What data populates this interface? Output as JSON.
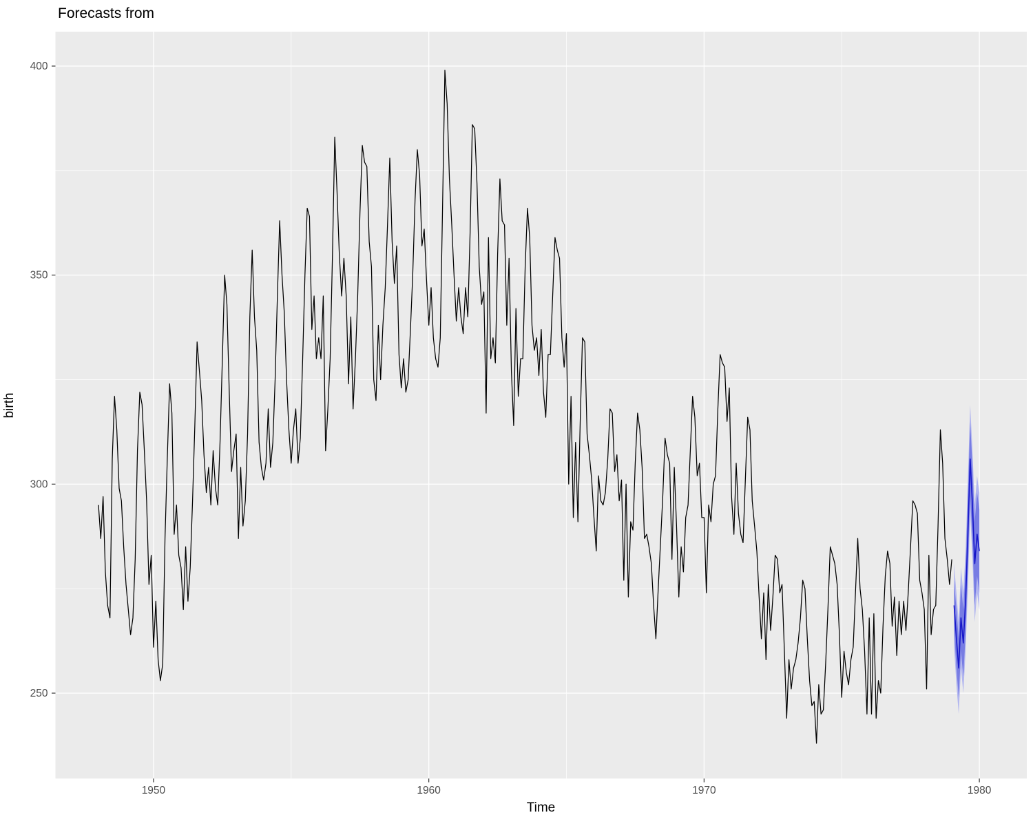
{
  "title": "Forecasts from",
  "axes": {
    "x_label": "Time",
    "y_label": "birth",
    "x_ticks": [
      1950,
      1960,
      1970,
      1980
    ],
    "x_minor": [
      1955,
      1965,
      1975
    ],
    "y_ticks": [
      250,
      300,
      350,
      400
    ],
    "y_minor": [
      275,
      325,
      375
    ]
  },
  "colors": {
    "panel_bg": "#EBEBEB",
    "grid": "#FFFFFF",
    "series_line": "#000000",
    "forecast_line": "#1717C9",
    "band80": "#777CE3",
    "band95": "#B3B7EF",
    "tick_mark": "#333333",
    "tick_text": "#4D4D4D"
  },
  "chart_data": {
    "type": "line",
    "title": "Forecasts from",
    "xlabel": "Time",
    "ylabel": "birth",
    "xlim": [
      1946.4,
      1981.7
    ],
    "ylim": [
      229.5,
      408.3
    ],
    "grid": true,
    "legend": "none",
    "x_start": 1948.0,
    "frequency": 12,
    "series": [
      {
        "name": "birth",
        "values": [
          295,
          287,
          297,
          279,
          271,
          268,
          306,
          321,
          313,
          299,
          296,
          285,
          276,
          270,
          264,
          268,
          282,
          308,
          322,
          319,
          308,
          296,
          276,
          283,
          261,
          272,
          258,
          253,
          257,
          287,
          306,
          324,
          317,
          288,
          295,
          283,
          280,
          270,
          285,
          272,
          280,
          296,
          314,
          334,
          327,
          320,
          307,
          298,
          304,
          295,
          308,
          299,
          295,
          310,
          330,
          350,
          343,
          322,
          303,
          308,
          312,
          287,
          304,
          290,
          296,
          312,
          340,
          356,
          340,
          332,
          310,
          304,
          301,
          305,
          318,
          304,
          310,
          325,
          345,
          363,
          350,
          341,
          325,
          313,
          305,
          313,
          318,
          305,
          311,
          330,
          350,
          366,
          364,
          337,
          345,
          330,
          335,
          330,
          345,
          308,
          318,
          330,
          355,
          383,
          370,
          355,
          345,
          354,
          345,
          324,
          340,
          318,
          330,
          345,
          365,
          381,
          377,
          376,
          358,
          352,
          325,
          320,
          338,
          325,
          338,
          347,
          362,
          378,
          358,
          348,
          357,
          331,
          323,
          330,
          322,
          325,
          337,
          350,
          368,
          380,
          374,
          357,
          361,
          349,
          338,
          347,
          335,
          330,
          328,
          335,
          366,
          399,
          391,
          373,
          362,
          350,
          339,
          347,
          340,
          336,
          347,
          340,
          360,
          386,
          385,
          372,
          352,
          343,
          346,
          317,
          359,
          330,
          335,
          329,
          355,
          373,
          363,
          362,
          338,
          354,
          327,
          314,
          342,
          321,
          330,
          330,
          352,
          366,
          359,
          338,
          332,
          335,
          326,
          337,
          322,
          316,
          331,
          331,
          345,
          359,
          356,
          354,
          335,
          328,
          336,
          300,
          321,
          292,
          310,
          291,
          315,
          335,
          334,
          312,
          307,
          301,
          292,
          284,
          302,
          296,
          295,
          298,
          306,
          318,
          317,
          303,
          307,
          296,
          301,
          277,
          300,
          273,
          291,
          289,
          305,
          317,
          313,
          304,
          287,
          288,
          285,
          281,
          271,
          263,
          275,
          286,
          297,
          311,
          307,
          305,
          282,
          304,
          290,
          273,
          285,
          279,
          292,
          295,
          308,
          321,
          316,
          302,
          305,
          292,
          292,
          274,
          295,
          291,
          300,
          302,
          318,
          331,
          329,
          328,
          315,
          323,
          297,
          288,
          305,
          293,
          288,
          286,
          301,
          316,
          313,
          296,
          290,
          284,
          273,
          263,
          274,
          258,
          276,
          265,
          273,
          283,
          282,
          274,
          276,
          260,
          244,
          258,
          251,
          256,
          258,
          262,
          268,
          277,
          275,
          263,
          253,
          247,
          248,
          238,
          252,
          245,
          246,
          257,
          270,
          285,
          283,
          281,
          276,
          264,
          249,
          260,
          255,
          252,
          258,
          261,
          274,
          287,
          275,
          270,
          260,
          245,
          268,
          245,
          269,
          244,
          253,
          250,
          266,
          278,
          284,
          281,
          266,
          273,
          259,
          272,
          264,
          272,
          265,
          274,
          285,
          296,
          295,
          293,
          277,
          274,
          270,
          251,
          283,
          264,
          270,
          271,
          290,
          313,
          305,
          287,
          282,
          276,
          282
        ]
      }
    ],
    "forecast": {
      "x_start": 1979.0833,
      "frequency": 12,
      "mean": [
        271,
        263,
        256,
        268,
        262,
        272,
        288,
        306,
        295,
        281,
        288,
        284
      ],
      "lo80": [
        265,
        256,
        249,
        260,
        254,
        264,
        279,
        297,
        286,
        271,
        278,
        274
      ],
      "hi80": [
        277,
        270,
        263,
        276,
        270,
        280,
        297,
        315,
        304,
        291,
        298,
        294
      ],
      "lo95": [
        261,
        252,
        245,
        256,
        250,
        260,
        275,
        293,
        282,
        267,
        274,
        270
      ],
      "hi95": [
        281,
        274,
        267,
        280,
        274,
        284,
        301,
        319,
        308,
        295,
        302,
        298
      ]
    }
  }
}
